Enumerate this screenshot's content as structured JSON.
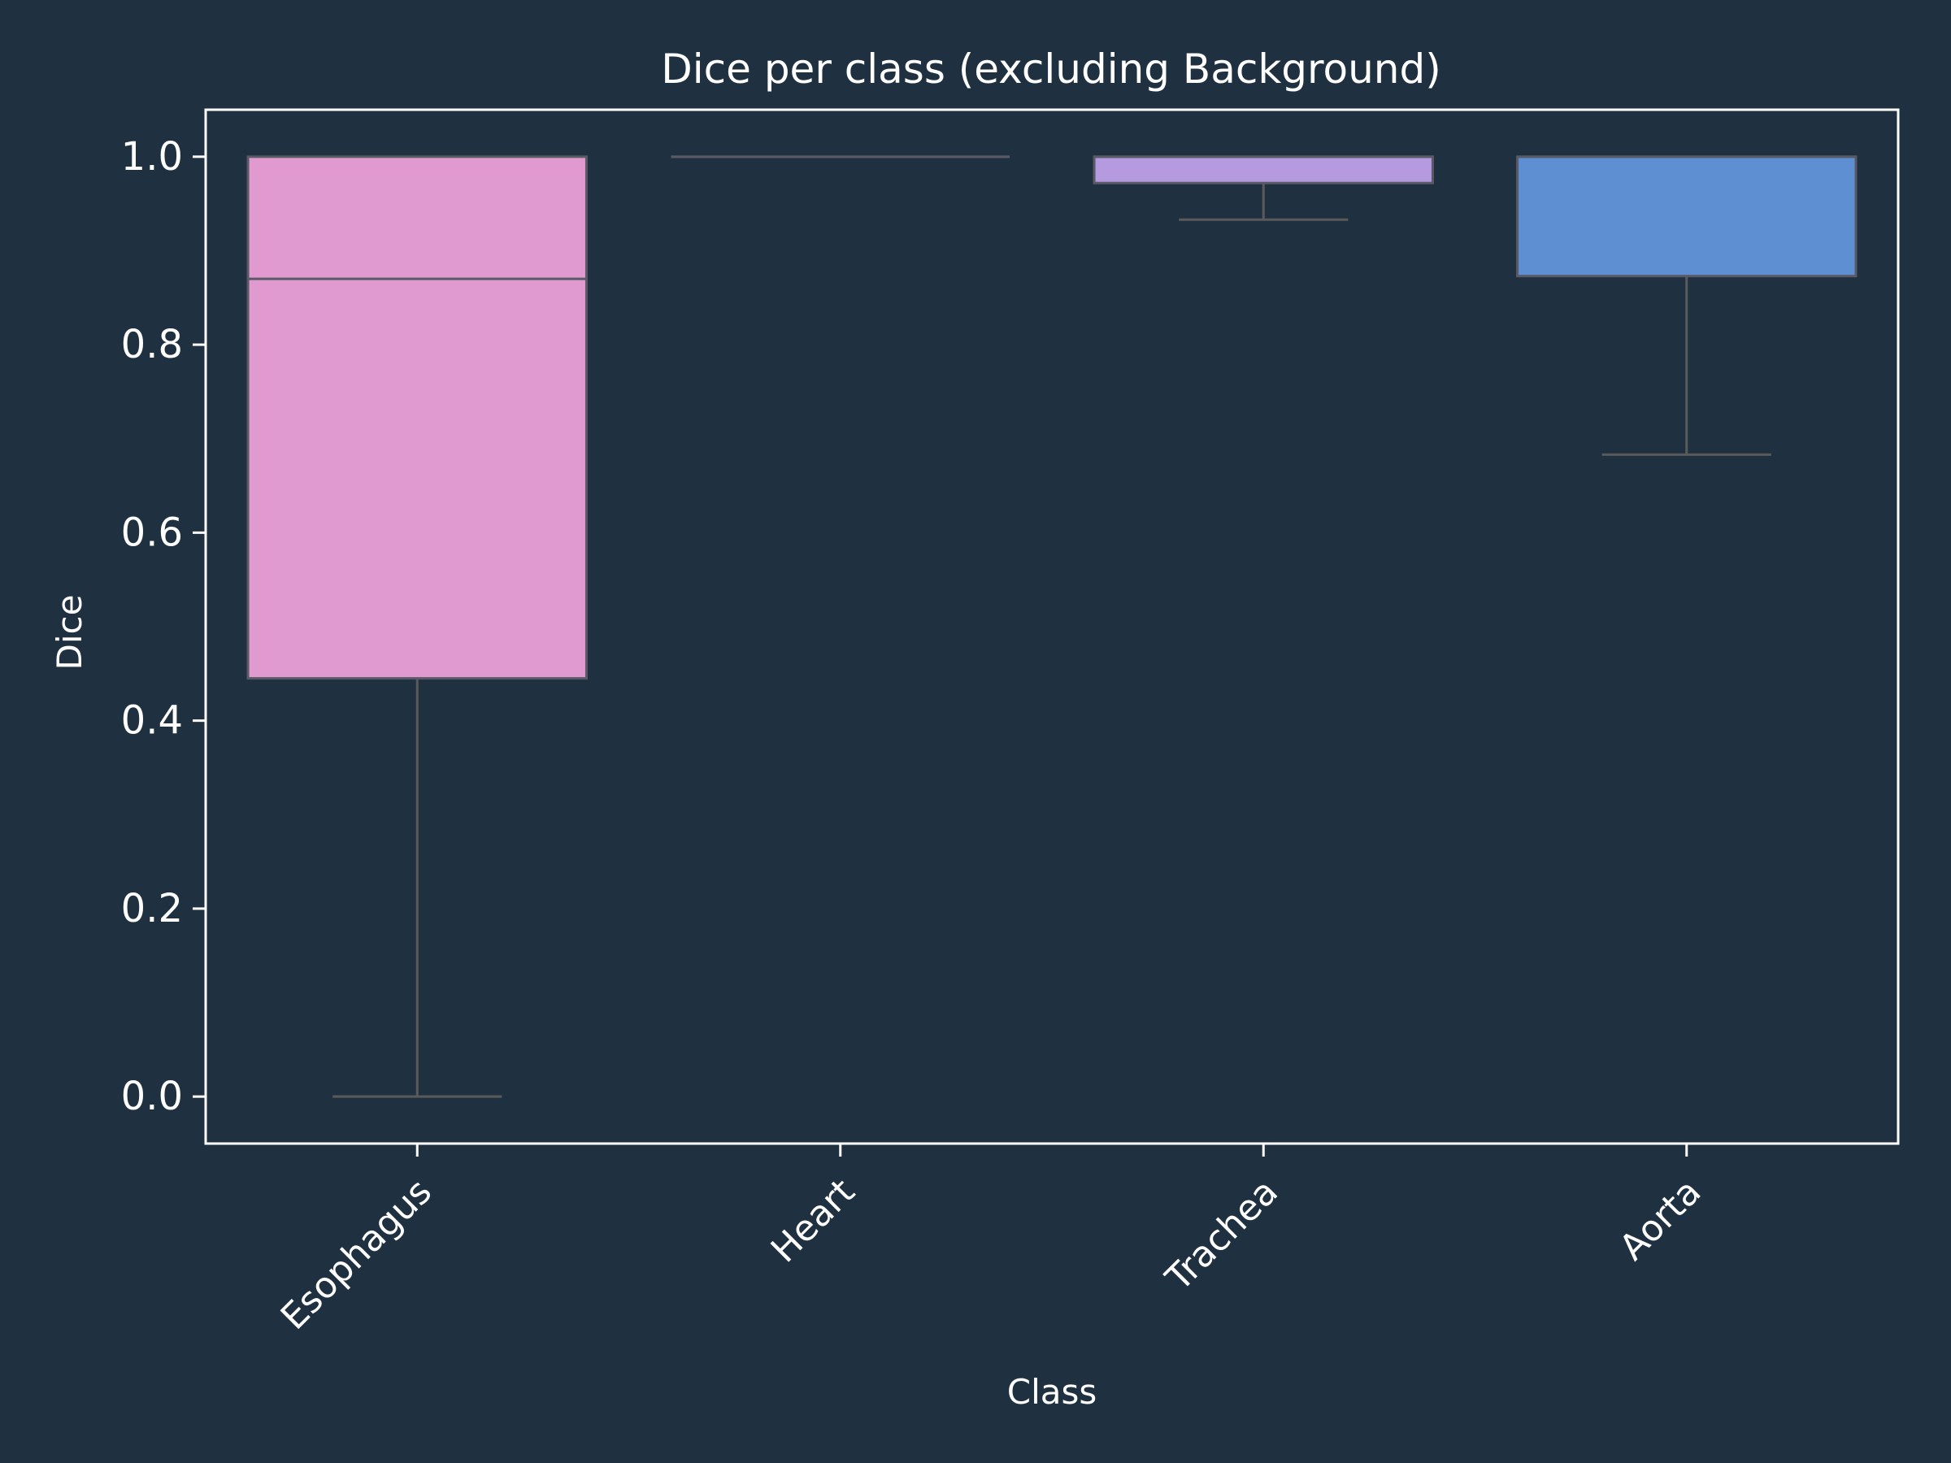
{
  "chart_data": {
    "type": "box",
    "title": "Dice per class (excluding Background)",
    "xlabel": "Class",
    "ylabel": "Dice",
    "ylim": [
      -0.05,
      1.05
    ],
    "yticks": [
      0.0,
      0.2,
      0.4,
      0.6,
      0.8,
      1.0
    ],
    "ytick_labels": [
      "0.0",
      "0.2",
      "0.4",
      "0.6",
      "0.8",
      "1.0"
    ],
    "grid": false,
    "categories": [
      "Esophagus",
      "Heart",
      "Trachea",
      "Aorta"
    ],
    "boxes": [
      {
        "category": "Esophagus",
        "whisker_low": 0.0,
        "q1": 0.445,
        "median": 0.87,
        "q3": 1.0,
        "whisker_high": 1.0,
        "color": "#e09ad0"
      },
      {
        "category": "Heart",
        "whisker_low": 1.0,
        "q1": 1.0,
        "median": 1.0,
        "q3": 1.0,
        "whisker_high": 1.0,
        "color": "#e09ad0"
      },
      {
        "category": "Trachea",
        "whisker_low": 0.933,
        "q1": 0.972,
        "median": 1.0,
        "q3": 1.0,
        "whisker_high": 1.0,
        "color": "#b59ae0"
      },
      {
        "category": "Aorta",
        "whisker_low": 0.683,
        "q1": 0.873,
        "median": 1.0,
        "q3": 1.0,
        "whisker_high": 1.0,
        "color": "#5e8fd3"
      }
    ],
    "colors": {
      "background": "#1f3140",
      "axis": "#ffffff",
      "box_edge": "#5a5a66",
      "whisker": "#5a5a5a",
      "text": "#ffffff"
    }
  }
}
